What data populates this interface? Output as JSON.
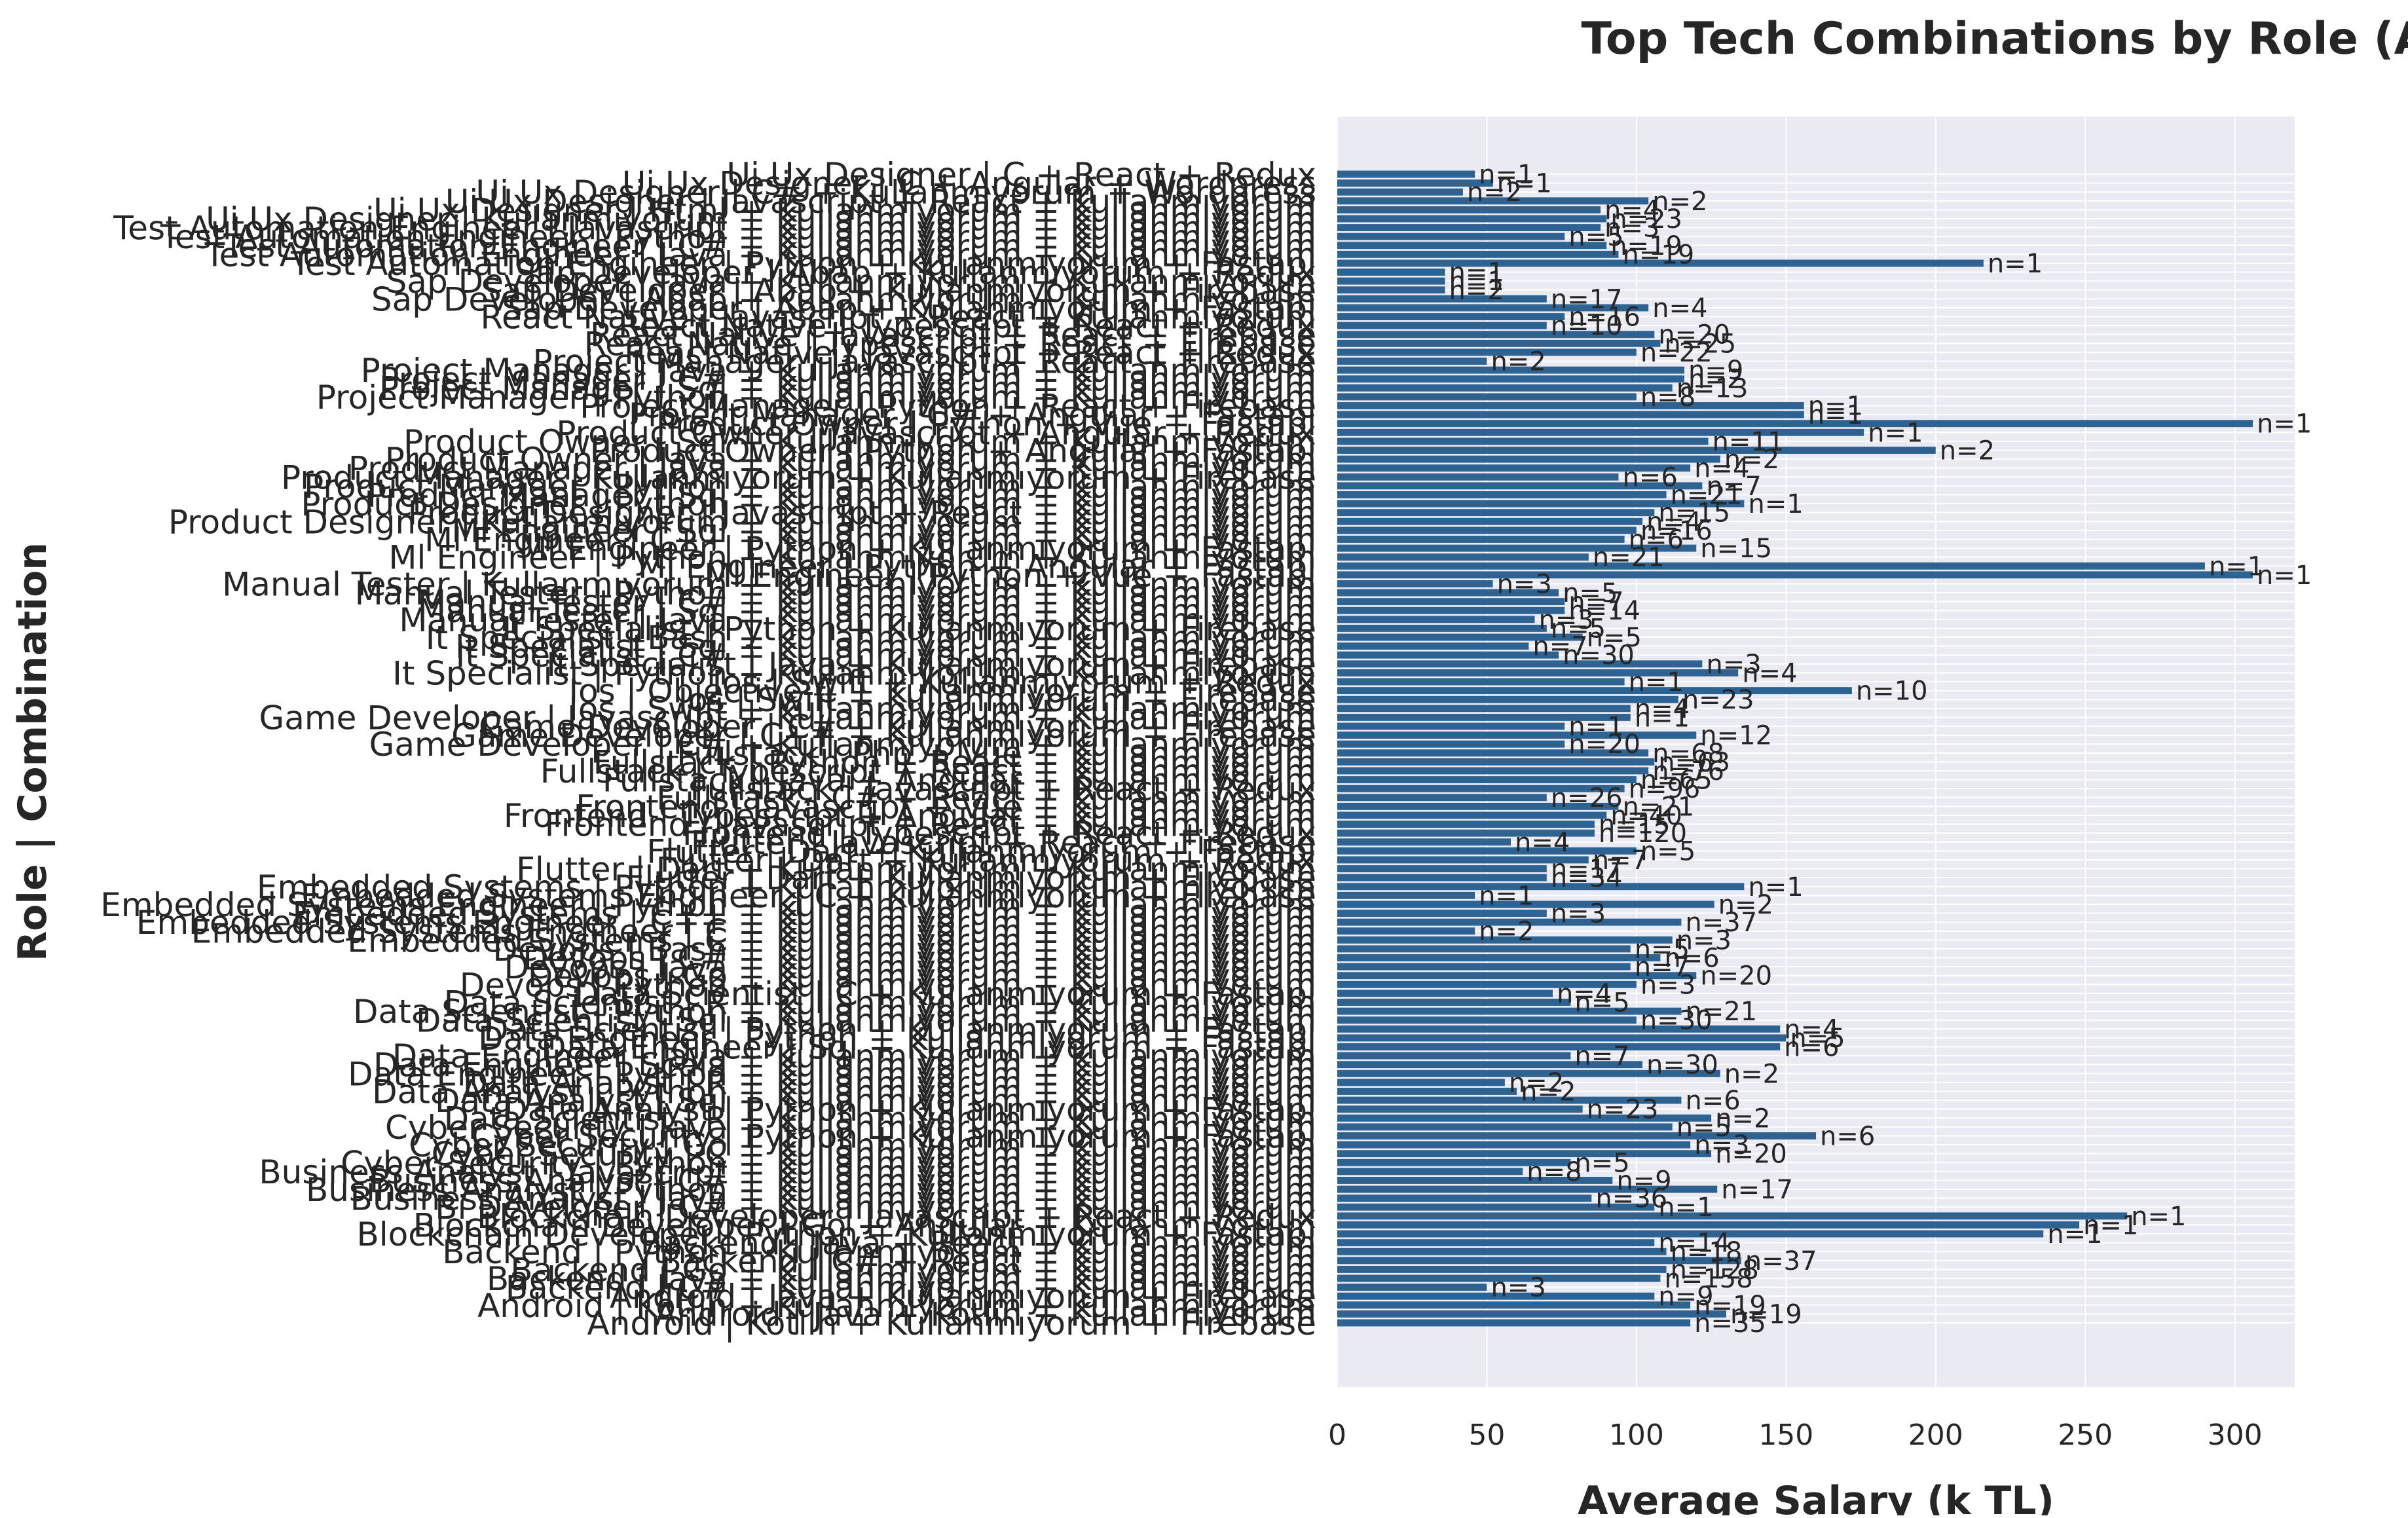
{
  "chart_data": {
    "type": "bar",
    "orientation": "horizontal",
    "title": "Top Tech Combinations by Role (Avg Salary)",
    "xlabel": "Average Salary (k TL)",
    "ylabel": "Role | Combination",
    "xlim": [
      0,
      320
    ],
    "xticks": [
      "0",
      "50",
      "100",
      "150",
      "200",
      "250",
      "300"
    ],
    "grid": true,
    "legend": "none",
    "bar_color": "#2e6290",
    "plot_background": "#eaeaf2",
    "bars": [
      {
        "label": "Android | Kotlin + Kullanmıyorum + Firebase",
        "value": 118,
        "n": "n=35"
      },
      {
        "label": "Android | Java + Kotlin + Kullanmıyorum",
        "value": 130,
        "n": "n=19"
      },
      {
        "label": "Android | Kotlin + Kullanmıyorum + Kullanmıyorum",
        "value": 118,
        "n": "n=19"
      },
      {
        "label": "Android | Java + Kullanmıyorum + Firebase",
        "value": 106,
        "n": "n=9"
      },
      {
        "label": "Backend | C# + Kullanmıyorum + Kullanmıyorum",
        "value": 50,
        "n": "n=3"
      },
      {
        "label": "Backend | Java + Kullanmıyorum + Kullanmıyorum",
        "value": 108,
        "n": "n=158"
      },
      {
        "label": "Backend | Go + Kullanmıyorum + Kullanmıyorum",
        "value": 110,
        "n": "n=128"
      },
      {
        "label": "Backend | C# + React + Kullanmıyorum",
        "value": 135,
        "n": "n=37"
      },
      {
        "label": "Backend | Python + Kullanmıyorum + Kullanmıyorum",
        "value": 110,
        "n": "n=18"
      },
      {
        "label": "Backend | Java + React + Kullanmıyorum",
        "value": 106,
        "n": "n=14"
      },
      {
        "label": "Blockchain Developer | Python + Kullanmıyorum + Fastapi",
        "value": 236,
        "n": "n=1"
      },
      {
        "label": "Blockchain Developer | Go + Angular + Kullanmıyorum",
        "value": 248,
        "n": "n=1"
      },
      {
        "label": "Blockchain Developer | Javascript + React + Redux",
        "value": 264,
        "n": "n=1"
      },
      {
        "label": "Bi Developer | C# + Kullanmıyorum + Kullanmıyorum",
        "value": 106,
        "n": "n=1"
      },
      {
        "label": "Business Analyst | Java + Kullanmıyorum + Kullanmıyorum",
        "value": 85,
        "n": "n=36"
      },
      {
        "label": "Business Analyst | Python + Kullanmıyorum + Kullanmıyorum",
        "value": 127,
        "n": "n=17"
      },
      {
        "label": "Business Analyst | C# + Kullanmıyorum + Kullanmıyorum",
        "value": 92,
        "n": "n=9"
      },
      {
        "label": "Business Analyst | Javascript + Kullanmıyorum + Kullanmıyorum",
        "value": 62,
        "n": "n=8"
      },
      {
        "label": "Cyber Security | Python + Kullanmıyorum + Kullanmıyorum",
        "value": 78,
        "n": "n=5"
      },
      {
        "label": "Cyber Security | C + Kullanmıyorum + Kullanmıyorum",
        "value": 125,
        "n": "n=20"
      },
      {
        "label": "Cyber Security | Go + Kullanmıyorum + Kullanmıyorum",
        "value": 118,
        "n": "n=3"
      },
      {
        "label": "Cyber Security | Python + Kullanmıyorum + Fastapi",
        "value": 160,
        "n": "n=6"
      },
      {
        "label": "Cyber Security | Java + Kullanmıyorum + Kullanmıyorum",
        "value": 112,
        "n": "n=5"
      },
      {
        "label": "Data Scientist | R + Kullanmıyorum + Kullanmıyorum",
        "value": 125,
        "n": "n=2"
      },
      {
        "label": "Data Analyst | Python + Kullanmıyorum + Fastapi",
        "value": 82,
        "n": "n=23"
      },
      {
        "label": "Data Analyst | Sql + Kullanmıyorum + Kullanmıyorum",
        "value": 115,
        "n": "n=6"
      },
      {
        "label": "Data Analyst | Python + Kullanmıyorum + Kullanmıyorum",
        "value": 60,
        "n": "n=2"
      },
      {
        "label": "Data Analyst | R + Kullanmıyorum + Kullanmıyorum",
        "value": 56,
        "n": "n=2"
      },
      {
        "label": "Data Engineer | Python + Kullanmıyorum + Kullanmıyorum",
        "value": 128,
        "n": "n=2"
      },
      {
        "label": "Data Engineer | Scala + Kullanmıyorum + Kullanmıyorum",
        "value": 102,
        "n": "n=30"
      },
      {
        "label": "Data Engineer | Java + Kullanmıyorum + Kullanmıyorum",
        "value": 78,
        "n": "n=7"
      },
      {
        "label": "Data Engineer | Sql + Kullanmıyorum + Fastapi",
        "value": 148,
        "n": "n=6"
      },
      {
        "label": "Data Engineer | Python + Kullanmıyorum + Fastapi",
        "value": 150,
        "n": "n=5"
      },
      {
        "label": "Data Scientist | Python + Kullanmıyorum + Fastapi",
        "value": 148,
        "n": "n=4"
      },
      {
        "label": "Data Scientist | Sql + Kullanmıyorum + Kullanmıyorum",
        "value": 100,
        "n": "n=30"
      },
      {
        "label": "Data Scientist | Python + Kullanmıyorum + Kullanmıyorum",
        "value": 115,
        "n": "n=21"
      },
      {
        "label": "Data Scientist | R + Kullanmıyorum + Kullanmıyorum",
        "value": 78,
        "n": "n=5"
      },
      {
        "label": "Data Scientist | C + Kullanmıyorum + Fastapi",
        "value": 72,
        "n": "n=4"
      },
      {
        "label": "Devops | Python + Kullanmıyorum + Kullanmıyorum",
        "value": 100,
        "n": "n=3"
      },
      {
        "label": "Devops | Go + Kullanmıyorum + Kullanmıyorum",
        "value": 120,
        "n": "n=20"
      },
      {
        "label": "Devops | Java + Kullanmıyorum + Kullanmıyorum",
        "value": 98,
        "n": "n=7"
      },
      {
        "label": "Devops | C# + Kullanmıyorum + Kullanmıyorum",
        "value": 108,
        "n": "n=6"
      },
      {
        "label": "Devops | Bash + Kullanmıyorum + Kullanmıyorum",
        "value": 98,
        "n": "n=5"
      },
      {
        "label": "Embedded Systems | C + Kullanmıyorum + Kullanmıyorum",
        "value": 112,
        "n": "n=3"
      },
      {
        "label": "Embedded Systems Engineer | C + Kullanmıyorum + Kullanmıyorum",
        "value": 46,
        "n": "n=2"
      },
      {
        "label": "Embedded Systems Engineer | C++ + Kullanmıyorum + Kullanmıyorum",
        "value": 115,
        "n": "n=37"
      },
      {
        "label": "Embedded Systems | C++ + Kullanmıyorum + Kullanmıyorum",
        "value": 70,
        "n": "n=3"
      },
      {
        "label": "Embedded Systems Engineer | Python + Kullanmıyorum + Kullanmıyorum",
        "value": 126,
        "n": "n=2"
      },
      {
        "label": "Embedded Systems Engineer | C + Kullanmıyorum + Firebase",
        "value": 46,
        "n": "n=1"
      },
      {
        "label": "Embedded Systems | Python + Kullanmıyorum + Kullanmıyorum",
        "value": 136,
        "n": "n=1"
      },
      {
        "label": "Flutter | Dart + Kullanmıyorum + Firebase",
        "value": 70,
        "n": "n=34"
      },
      {
        "label": "Flutter | Dart + Kullanmıyorum + Kullanmıyorum",
        "value": 70,
        "n": "n=17"
      },
      {
        "label": "Flutter | Dart + Kullanmıyorum + Redux",
        "value": 84,
        "n": "n=7"
      },
      {
        "label": "Flutter | Dart + Kullanmıyorum + Fastapi",
        "value": 100,
        "n": "n=5"
      },
      {
        "label": "Flutter | Javascript + React + Firebase",
        "value": 58,
        "n": "n=4"
      },
      {
        "label": "Frontend | Typescript + React + Redux",
        "value": 86,
        "n": "n=120"
      },
      {
        "label": "Frontend | Javascript + React + Kullanmıyorum",
        "value": 86,
        "n": "n=15"
      },
      {
        "label": "Frontend | Typescript + Angular + Kullanmıyorum",
        "value": 90,
        "n": "n=40"
      },
      {
        "label": "Frontend | Javascript + Vue + Kullanmıyorum",
        "value": 94,
        "n": "n=21"
      },
      {
        "label": "Fullstack | C# + React + Kullanmıyorum",
        "value": 70,
        "n": "n=26"
      },
      {
        "label": "Fullstack | Javascript + React + Redux",
        "value": 96,
        "n": "n=96"
      },
      {
        "label": "Fullstack | Java + Angular + Kullanmıyorum",
        "value": 100,
        "n": "n=65"
      },
      {
        "label": "Fullstack | Typescript + React + Kullanmıyorum",
        "value": 104,
        "n": "n=76"
      },
      {
        "label": "Fullstack | Python + React + Kullanmıyorum",
        "value": 106,
        "n": "n=63"
      },
      {
        "label": "Fullstack | Php + Vue + Kullanmıyorum",
        "value": 104,
        "n": "n=68"
      },
      {
        "label": "Game Developer | C# + Kullanmıyorum + Kullanmıyorum",
        "value": 76,
        "n": "n=20"
      },
      {
        "label": "Game Developer | C++ + Kullanmıyorum + Firebase",
        "value": 120,
        "n": "n=12"
      },
      {
        "label": "Game Developer | C# + Kullanmıyorum + Firebase",
        "value": 76,
        "n": "n=1"
      },
      {
        "label": "Game Developer | Javascript + Kullanmıyorum + Kullanmıyorum",
        "value": 98,
        "n": "n=1"
      },
      {
        "label": "Ios | Swift + Kullanmıyorum + Kullanmıyorum",
        "value": 98,
        "n": "n=4"
      },
      {
        "label": "Ios | Swift + Kullanmıyorum + Firebase",
        "value": 114,
        "n": "n=23"
      },
      {
        "label": "Ios | Objective-C + Kullanmıyorum + Firebase",
        "value": 172,
        "n": "n=10"
      },
      {
        "label": "Ios | Swift + Kullanmıyorum + Redux",
        "value": 96,
        "n": "n=1"
      },
      {
        "label": "It Specialist | Python + Kullanmıyorum + Kullanmıyorum",
        "value": 134,
        "n": "n=4"
      },
      {
        "label": "It Specialist | Java + Kullanmıyorum + Firebase",
        "value": 122,
        "n": "n=3"
      },
      {
        "label": "It Specialist | C# + Kullanmıyorum + Kullanmıyorum",
        "value": 74,
        "n": "n=30"
      },
      {
        "label": "It Specialist | Sql + Kullanmıyorum + Kullanmıyorum",
        "value": 64,
        "n": "n=7"
      },
      {
        "label": "It Specialist | Bash + Kullanmıyorum + Kullanmıyorum",
        "value": 82,
        "n": "n=5"
      },
      {
        "label": "It Specialist | Python + Kullanmıyorum + Firebase",
        "value": 70,
        "n": "n=5"
      },
      {
        "label": "Manual Tester | Java + Kullanmıyorum + Kullanmıyorum",
        "value": 66,
        "n": "n=3"
      },
      {
        "label": "Manual Tester | Sql + Kullanmıyorum + Kullanmıyorum",
        "value": 76,
        "n": "n=14"
      },
      {
        "label": "Manual Tester | C# + Kullanmıyorum + Kullanmıyorum",
        "value": 76,
        "n": "n=7"
      },
      {
        "label": "Manual Tester | Python + Kullanmıyorum + Kullanmıyorum",
        "value": 74,
        "n": "n=5"
      },
      {
        "label": "Manual Tester | Kullanmıyorum + Kullanmıyorum + Kullanmıyorum",
        "value": 52,
        "n": "n=3"
      },
      {
        "label": "Ml Engineer | Python + Vue + Fastapi",
        "value": 306,
        "n": "n=1"
      },
      {
        "label": "Ml Engineer | Python + Angular + Fastapi",
        "value": 290,
        "n": "n=1"
      },
      {
        "label": "Ml Engineer | Python + Kullanmıyorum + Kullanmıyorum",
        "value": 84,
        "n": "n=21"
      },
      {
        "label": "Ml Engineer | Python + Kullanmıyorum + Fastapi",
        "value": 120,
        "n": "n=15"
      },
      {
        "label": "Ml Engineer | C++ + Kullanmıyorum + Kullanmıyorum",
        "value": 96,
        "n": "n=6"
      },
      {
        "label": "Ml Engineer | Sql + Kullanmıyorum + Kullanmıyorum",
        "value": 100,
        "n": "n=16"
      },
      {
        "label": "Product Designer | Kullanmıyorum + Kullanmıyorum + Kullanmıyorum",
        "value": 102,
        "n": "n=4"
      },
      {
        "label": "Product Designer | Javascript + React + Kullanmıyorum",
        "value": 106,
        "n": "n=15"
      },
      {
        "label": "Product Designer | Python + Kullanmıyorum + Kullanmıyorum",
        "value": 136,
        "n": "n=1"
      },
      {
        "label": "Product Manager | Sql + Kullanmıyorum + Kullanmıyorum",
        "value": 110,
        "n": "n=21"
      },
      {
        "label": "Product Manager | Python + Kullanmıyorum + Kullanmıyorum",
        "value": 122,
        "n": "n=7"
      },
      {
        "label": "Product Manager | Kullanmıyorum + Kullanmıyorum + Firebase",
        "value": 94,
        "n": "n=6"
      },
      {
        "label": "Product Manager | Java + Kullanmıyorum + Kullanmıyorum",
        "value": 118,
        "n": "n=4"
      },
      {
        "label": "Product Owner | Java + Kullanmıyorum + Kullanmıyorum",
        "value": 128,
        "n": "n=2"
      },
      {
        "label": "Product Owner | Python + Angular + Fastapi",
        "value": 200,
        "n": "n=2"
      },
      {
        "label": "Product Owner | Sql + Kullanmıyorum + Kullanmıyorum",
        "value": 124,
        "n": "n=11"
      },
      {
        "label": "Product Owner | Javascript + Angular + Redux",
        "value": 176,
        "n": "n=1"
      },
      {
        "label": "Product Owner | Python + Vue + Fastapi",
        "value": 306,
        "n": "n=1"
      },
      {
        "label": "Project Manager | C# + Angular + Fastapi",
        "value": 156,
        "n": "n=1"
      },
      {
        "label": "Project Manager | Python + React + Firebase",
        "value": 156,
        "n": "n=1"
      },
      {
        "label": "Project Manager | Python + Kullanmıyorum + Kullanmıyorum",
        "value": 100,
        "n": "n=8"
      },
      {
        "label": "Project Manager | Sql + Kullanmıyorum + Kullanmıyorum",
        "value": 112,
        "n": "n=13"
      },
      {
        "label": "Project Manager | C# + Kullanmıyorum + Kullanmıyorum",
        "value": 116,
        "n": "n=2"
      },
      {
        "label": "Project Manager | Java + Kullanmıyorum + Kullanmıyorum",
        "value": 116,
        "n": "n=9"
      },
      {
        "label": "Project Manager | Javascript + React + Firebase",
        "value": 50,
        "n": "n=2"
      },
      {
        "label": "React Native | Javascript + React + Redux",
        "value": 100,
        "n": "n=22"
      },
      {
        "label": "React Native | Typescript + React + Firebase",
        "value": 108,
        "n": "n=25"
      },
      {
        "label": "React Native | Javascript + React + Firebase",
        "value": 106,
        "n": "n=20"
      },
      {
        "label": "React Native | Typescript + React + Redux",
        "value": 70,
        "n": "n=10"
      },
      {
        "label": "React Native | Javascript + React + Kullanmıyorum",
        "value": 76,
        "n": "n=16"
      },
      {
        "label": "Sap Developer | Abap + Kullanmıyorum + Fastapi",
        "value": 104,
        "n": "n=4"
      },
      {
        "label": "Sap Developer | Abap + Kullanmıyorum + Kullanmıyorum",
        "value": 70,
        "n": "n=17"
      },
      {
        "label": "Sap Developer | Abap + Kullanmıyorum + Firebase",
        "value": 36,
        "n": "n=2"
      },
      {
        "label": "Sap Developer | Java + Kullanmıyorum + Kullanmıyorum",
        "value": 36,
        "n": "n=1"
      },
      {
        "label": "Sap Developer | Abap + Kullanmıyorum + Redux",
        "value": 36,
        "n": "n=1"
      },
      {
        "label": "Test Automation Engineer | Python + Kullanmıyorum + Fastapi",
        "value": 216,
        "n": "n=1"
      },
      {
        "label": "Test Automation Engineer | Java + Kullanmıyorum + Kullanmıyorum",
        "value": 94,
        "n": "n=19"
      },
      {
        "label": "Test Automation Engineer | C# + Kullanmıyorum + Kullanmıyorum",
        "value": 90,
        "n": "n=19"
      },
      {
        "label": "Test Automation Engineer | Python + Kullanmıyorum + Kullanmıyorum",
        "value": 76,
        "n": "n=5"
      },
      {
        "label": "Test Automation Engineer | Javascript + Kullanmıyorum + Kullanmıyorum",
        "value": 88,
        "n": "n=3"
      },
      {
        "label": "Ui Ux Designer | Kullanmıyorum + Kullanmıyorum + Kullanmıyorum",
        "value": 90,
        "n": "n=23"
      },
      {
        "label": "Ui Ux Designer | Html + Kullanmıyorum + Kullanmıyorum",
        "value": 88,
        "n": "n=4"
      },
      {
        "label": "Ui Ux Designer | Javascript + React + Kullanmıyorum",
        "value": 104,
        "n": "n=2"
      },
      {
        "label": "Ui Ux Designer | C# + Kullanmıyorum + Wordpress",
        "value": 42,
        "n": "n=2"
      },
      {
        "label": "Ui Ux Designer | C + Angular + Wordpress",
        "value": 52,
        "n": "n=1"
      },
      {
        "label": "Ui Ux Designer | C + React + Redux",
        "value": 46,
        "n": "n=1"
      }
    ]
  }
}
